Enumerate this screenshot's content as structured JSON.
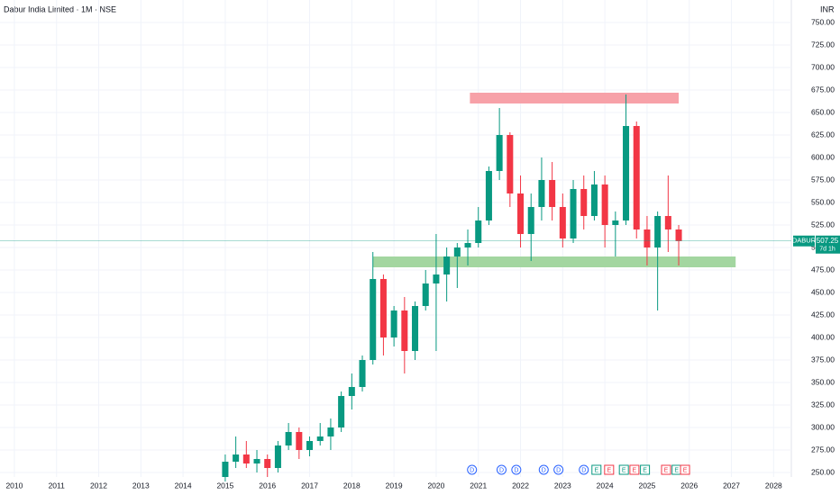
{
  "chart_data": {
    "type": "candlestick",
    "title": "Dabur India Limited · 1M · NSE",
    "currency": "INR",
    "symbol": "DABUR",
    "countdown": "7d 1h",
    "up_color": "#089981",
    "down_color": "#f23645",
    "x": [
      2015.0,
      2015.25,
      2015.5,
      2015.75,
      2016.0,
      2016.25,
      2016.5,
      2016.75,
      2017.0,
      2017.25,
      2017.5,
      2017.75,
      2018.0,
      2018.25,
      2018.5,
      2018.75,
      2019.0,
      2019.25,
      2019.5,
      2019.75,
      2020.0,
      2020.25,
      2020.5,
      2020.75,
      2021.0,
      2021.25,
      2021.5,
      2021.75,
      2022.0,
      2022.25,
      2022.5,
      2022.75,
      2023.0,
      2023.25,
      2023.5,
      2023.75,
      2024.0,
      2024.25,
      2024.5,
      2024.75,
      2025.0,
      2025.25,
      2025.5,
      2025.75
    ],
    "open": [
      245,
      262,
      270,
      260,
      265,
      255,
      280,
      295,
      275,
      285,
      290,
      300,
      335,
      345,
      375,
      465,
      400,
      430,
      385,
      435,
      460,
      470,
      490,
      500,
      505,
      530,
      585,
      625,
      560,
      515,
      545,
      575,
      545,
      510,
      565,
      535,
      570,
      525,
      530,
      635,
      520,
      500,
      535,
      520
    ],
    "high": [
      270,
      290,
      285,
      275,
      270,
      285,
      305,
      300,
      290,
      305,
      310,
      340,
      360,
      380,
      495,
      470,
      435,
      445,
      440,
      475,
      515,
      500,
      505,
      520,
      545,
      590,
      655,
      628,
      580,
      560,
      600,
      595,
      560,
      575,
      580,
      585,
      580,
      540,
      670,
      640,
      535,
      540,
      580,
      525
    ],
    "low": [
      240,
      255,
      255,
      250,
      245,
      250,
      275,
      265,
      268,
      280,
      275,
      295,
      320,
      340,
      370,
      380,
      390,
      360,
      375,
      430,
      385,
      440,
      455,
      480,
      500,
      525,
      575,
      545,
      500,
      485,
      530,
      530,
      500,
      505,
      520,
      530,
      500,
      490,
      525,
      510,
      480,
      430,
      495,
      480
    ],
    "close": [
      262,
      270,
      260,
      265,
      255,
      280,
      295,
      275,
      285,
      290,
      300,
      335,
      345,
      375,
      465,
      400,
      430,
      385,
      435,
      460,
      470,
      490,
      500,
      505,
      530,
      585,
      625,
      560,
      515,
      545,
      575,
      545,
      510,
      565,
      535,
      570,
      525,
      530,
      635,
      520,
      500,
      535,
      520,
      507.25
    ],
    "zones": [
      {
        "xlim": [
          2020.8,
          2025.75
        ],
        "ylim": [
          660,
          672
        ],
        "color": "#f7a1a8"
      },
      {
        "xlim": [
          2018.5,
          2027.1
        ],
        "ylim": [
          478,
          490
        ],
        "color": "#a3d6a0"
      }
    ],
    "events": [
      {
        "x": 2020.85,
        "label": "D"
      },
      {
        "x": 2021.55,
        "label": "D"
      },
      {
        "x": 2021.9,
        "label": "D"
      },
      {
        "x": 2022.55,
        "label": "D"
      },
      {
        "x": 2022.9,
        "label": "D"
      },
      {
        "x": 2023.5,
        "label": "D"
      },
      {
        "x": 2023.8,
        "label": "E"
      },
      {
        "x": 2024.1,
        "label": "E"
      },
      {
        "x": 2024.45,
        "label": "E"
      },
      {
        "x": 2024.7,
        "label": "E"
      },
      {
        "x": 2024.95,
        "label": "E"
      },
      {
        "x": 2025.45,
        "label": "E"
      },
      {
        "x": 2025.7,
        "label": "E"
      },
      {
        "x": 2025.9,
        "label": "E"
      }
    ],
    "xlim": [
      2009.66,
      2028.42
    ],
    "ylim": [
      245,
      775
    ],
    "xticks": [
      2010,
      2011,
      2012,
      2013,
      2014,
      2015,
      2016,
      2017,
      2018,
      2019,
      2020,
      2021,
      2022,
      2023,
      2024,
      2025,
      2026,
      2027,
      2028
    ],
    "yticks": [
      {
        "value": 250,
        "label": "250.00"
      },
      {
        "value": 275,
        "label": "275.00"
      },
      {
        "value": 300,
        "label": "300.00"
      },
      {
        "value": 325,
        "label": "325.00"
      },
      {
        "value": 350,
        "label": "350.00"
      },
      {
        "value": 375,
        "label": "375.00"
      },
      {
        "value": 400,
        "label": "400.00"
      },
      {
        "value": 425,
        "label": "425.00"
      },
      {
        "value": 450,
        "label": "450.00"
      },
      {
        "value": 475,
        "label": "475.00"
      },
      {
        "value": 500,
        "label": "500.00"
      },
      {
        "value": 525,
        "label": "525.00"
      },
      {
        "value": 550,
        "label": "550.00"
      },
      {
        "value": 575,
        "label": "575.00"
      },
      {
        "value": 600,
        "label": "600.00"
      },
      {
        "value": 625,
        "label": "625.00"
      },
      {
        "value": 650,
        "label": "650.00"
      },
      {
        "value": 675,
        "label": "675.00"
      },
      {
        "value": 700,
        "label": "700.00"
      },
      {
        "value": 725,
        "label": "725.00"
      },
      {
        "value": 750,
        "label": "750.00"
      }
    ],
    "grid": true
  }
}
